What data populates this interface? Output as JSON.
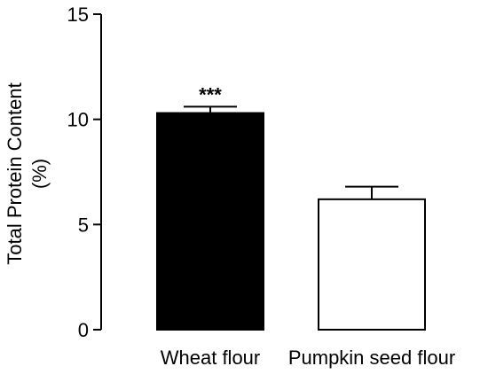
{
  "chart_data": {
    "type": "bar",
    "categories": [
      "Wheat flour",
      "Pumpkin seed flour"
    ],
    "values": [
      10.3,
      6.2
    ],
    "errors": [
      0.3,
      0.6
    ],
    "bar_fills": [
      "#000000",
      "#ffffff"
    ],
    "bar_stroke": "#000000",
    "annotations": [
      "***",
      ""
    ],
    "ylabel_lines": [
      "Total Protein Content",
      "(%)"
    ],
    "ylim": [
      0,
      15
    ],
    "yticks": [
      0,
      5,
      10,
      15
    ],
    "ytick_labels": [
      "0",
      "5",
      "10",
      "15"
    ],
    "grid": false
  }
}
